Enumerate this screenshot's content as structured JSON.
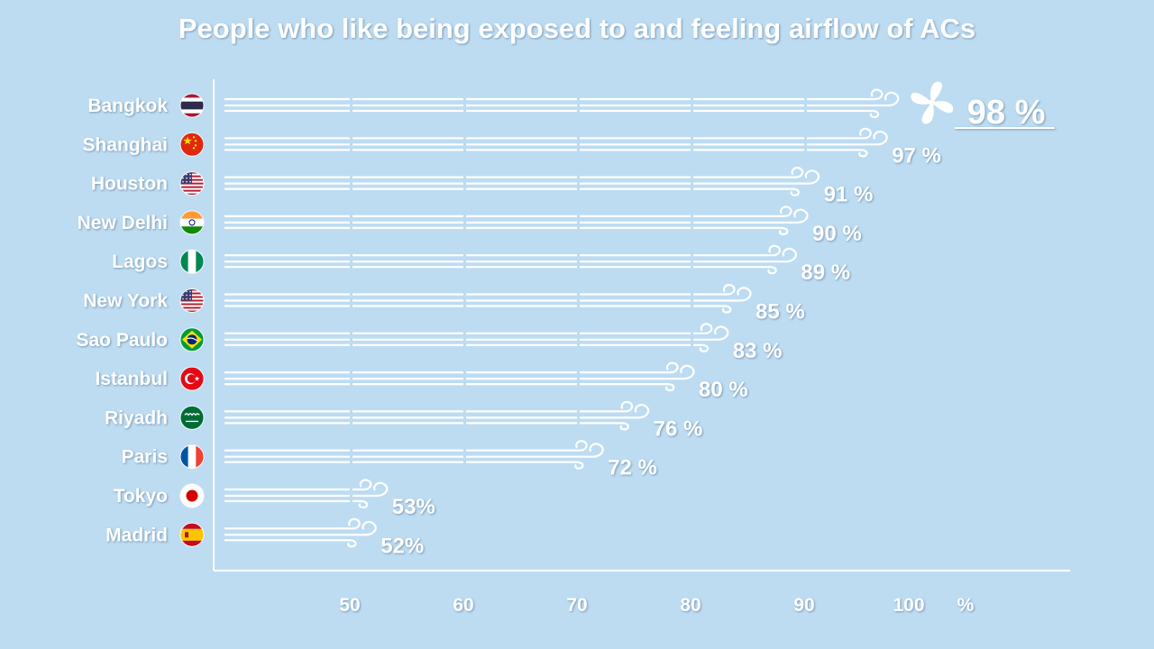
{
  "chart_data": {
    "type": "bar",
    "title": "People who like being exposed to and feeling airflow of ACs",
    "xlabel": "",
    "ylabel": "",
    "unit": "%",
    "xlim": [
      40,
      100
    ],
    "x_ticks": [
      50,
      60,
      70,
      80,
      90,
      100
    ],
    "categories": [
      "Bangkok",
      "Shanghai",
      "Houston",
      "New Delhi",
      "Lagos",
      "New York",
      "Sao Paulo",
      "Istanbul",
      "Riyadh",
      "Paris",
      "Tokyo",
      "Madrid"
    ],
    "values": [
      98,
      97,
      91,
      90,
      89,
      85,
      83,
      80,
      76,
      72,
      53,
      52
    ],
    "value_labels": [
      "98 %",
      "97 %",
      "91 %",
      "90 %",
      "89 %",
      "85 %",
      "83 %",
      "80 %",
      "76 %",
      "72 %",
      "53%",
      "52%"
    ],
    "flags": [
      "thailand-flag-icon",
      "china-flag-icon",
      "usa-flag-icon",
      "india-flag-icon",
      "nigeria-flag-icon",
      "usa-flag-icon",
      "brazil-flag-icon",
      "turkey-flag-icon",
      "saudi-arabia-flag-icon",
      "france-flag-icon",
      "japan-flag-icon",
      "spain-flag-icon"
    ],
    "bar_style": "airflow-lines",
    "highlight_icon": "fan-icon",
    "grid": false,
    "legend": "none"
  },
  "colors": {
    "background": "#bddcf2",
    "foreground": "#ffffff"
  }
}
